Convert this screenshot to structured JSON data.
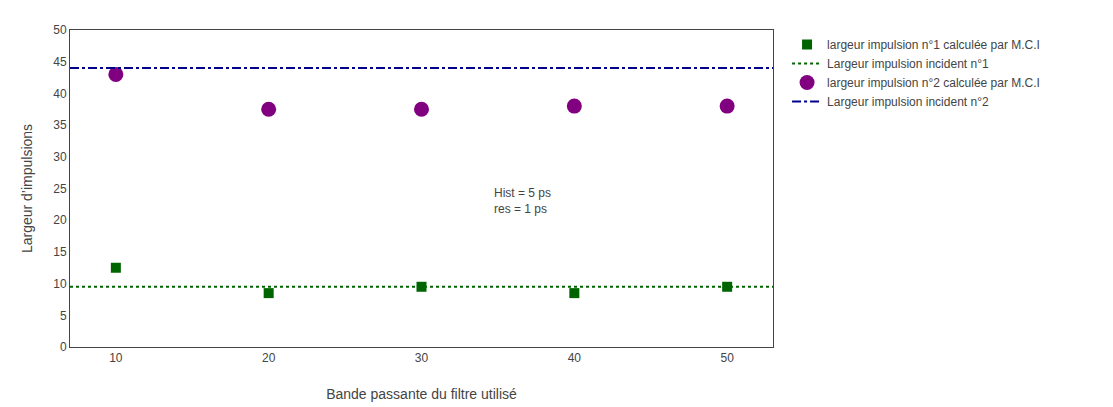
{
  "chart_data": {
    "type": "scatter",
    "xlabel": "Bande passante du filtre utilisé",
    "ylabel": "Largeur d’impulsions",
    "xlim": [
      7,
      53
    ],
    "ylim": [
      0,
      50
    ],
    "xticks": [
      10,
      20,
      30,
      40,
      50
    ],
    "yticks": [
      0,
      5,
      10,
      15,
      20,
      25,
      30,
      35,
      40,
      45,
      50
    ],
    "grid": false,
    "legend": "right",
    "annotation": "Hist = 5 ps\nres = 1 ps",
    "series": [
      {
        "name": "largeur impulsion n°1 calculée par M.C.I",
        "type": "scatter",
        "marker": "square",
        "color": "#006400",
        "x": [
          10,
          20,
          30,
          40,
          50
        ],
        "values": [
          12.5,
          8.5,
          9.5,
          8.5,
          9.5
        ]
      },
      {
        "name": "Largeur impulsion incident n°1",
        "type": "line",
        "line_style": "dotted",
        "color": "#006400",
        "x": [
          7,
          53
        ],
        "values": [
          9.5,
          9.5
        ]
      },
      {
        "name": "largeur impulsion n°2 calculée par M.C.I",
        "type": "scatter",
        "marker": "circle",
        "color": "#800080",
        "x": [
          10,
          20,
          30,
          40,
          50
        ],
        "values": [
          43,
          37.5,
          37.5,
          38,
          38
        ]
      },
      {
        "name": "Largeur impulsion incident n°2",
        "type": "line",
        "line_style": "dashdot",
        "color": "#00008B",
        "x": [
          7,
          53
        ],
        "values": [
          44,
          44
        ]
      }
    ]
  }
}
